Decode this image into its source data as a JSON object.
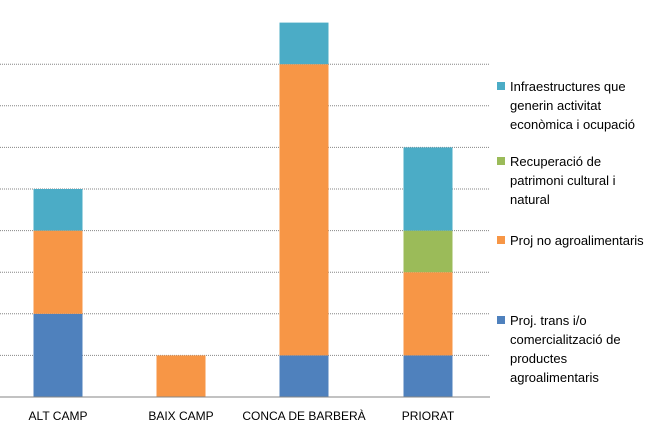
{
  "chart_data": {
    "type": "bar",
    "stacked": true,
    "categories": [
      "ALT CAMP",
      "BAIX CAMP",
      "CONCA DE BARBERÀ",
      "PRIORAT"
    ],
    "series": [
      {
        "name": "Proj. trans i/o comercialització de productes agroalimentaris",
        "color": "#4f81bd",
        "values": [
          2,
          0,
          1,
          1
        ]
      },
      {
        "name": "Proj no agroalimentaris",
        "color": "#f79646",
        "values": [
          2,
          1,
          7,
          2
        ]
      },
      {
        "name": "Recuperació de patrimoni cultural i natural",
        "color": "#9bbb59",
        "values": [
          0,
          0,
          0,
          1
        ]
      },
      {
        "name": "Infraestructures que generin activitat econòmica i ocupació",
        "color": "#4bacc6",
        "values": [
          1,
          0,
          1,
          2
        ]
      }
    ],
    "ylim": [
      0,
      8.5
    ],
    "grid": true,
    "gridlines": [
      1,
      2,
      3,
      4,
      5,
      6,
      7,
      8
    ],
    "legend_position": "right",
    "legend_lines": [
      [
        "Infraestructures que",
        "generin activitat",
        "econòmica i ocupació"
      ],
      [
        "Recuperació de",
        "patrimoni cultural i",
        "natural"
      ],
      [
        "Proj no agroalimentaris"
      ],
      [
        "Proj. trans i/o",
        "comercialització de",
        "productes",
        "agroalimentaris"
      ]
    ]
  }
}
